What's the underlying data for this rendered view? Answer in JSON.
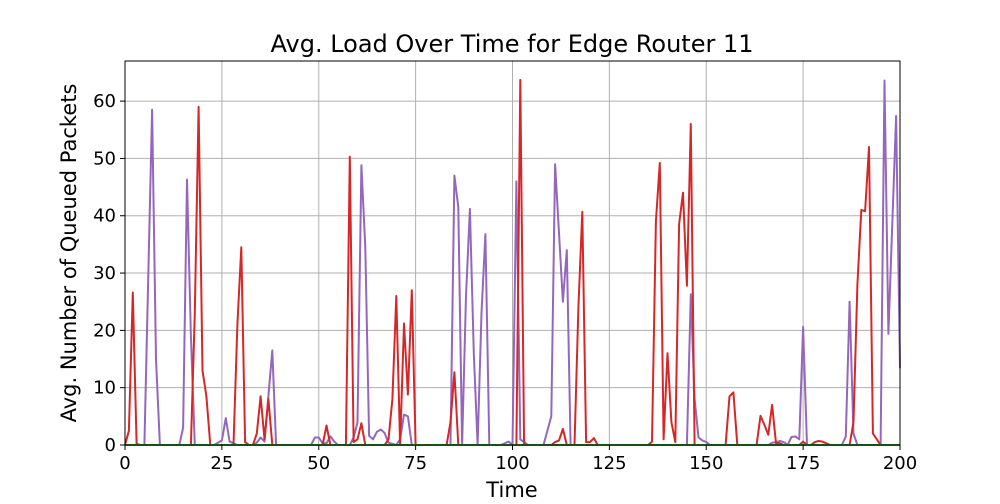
{
  "chart_data": {
    "type": "line",
    "title": "Avg. Load Over Time for Edge Router 11",
    "xlabel": "Time",
    "ylabel": "Avg. Number of Queued Packets",
    "xlim": [
      0,
      200
    ],
    "ylim": [
      0,
      67
    ],
    "xticks": [
      0,
      25,
      50,
      75,
      100,
      125,
      150,
      175,
      200
    ],
    "yticks": [
      0,
      10,
      20,
      30,
      40,
      50,
      60
    ],
    "grid": true,
    "colors": {
      "purple": "#9467bd",
      "red": "#d62728",
      "green": "#2ca02c"
    },
    "series": [
      {
        "color": "#9467bd",
        "points": [
          [
            0,
            0
          ],
          [
            5,
            0
          ],
          [
            7,
            58.5
          ],
          [
            8,
            15
          ],
          [
            9,
            0
          ],
          [
            14,
            0
          ],
          [
            15,
            3
          ],
          [
            16,
            46.3
          ],
          [
            17,
            19
          ],
          [
            18,
            0
          ],
          [
            23,
            0
          ],
          [
            25,
            0.8
          ],
          [
            26,
            4.7
          ],
          [
            27,
            0.6
          ],
          [
            29,
            0
          ],
          [
            33,
            0
          ],
          [
            34,
            0.4
          ],
          [
            35,
            1.3
          ],
          [
            36,
            0.6
          ],
          [
            38,
            16.5
          ],
          [
            39,
            0
          ],
          [
            48,
            0
          ],
          [
            49,
            1.3
          ],
          [
            50,
            1.3
          ],
          [
            51,
            0.3
          ],
          [
            52,
            0.3
          ],
          [
            53,
            1.5
          ],
          [
            54,
            0.6
          ],
          [
            55,
            0
          ],
          [
            58,
            0
          ],
          [
            59,
            1.3
          ],
          [
            60,
            3.9
          ],
          [
            61,
            48.8
          ],
          [
            62,
            34.5
          ],
          [
            63,
            1.6
          ],
          [
            64,
            1
          ],
          [
            65,
            2.3
          ],
          [
            66,
            2.7
          ],
          [
            67,
            2.1
          ],
          [
            68,
            0.4
          ],
          [
            70,
            0
          ],
          [
            71,
            1
          ],
          [
            72,
            5.3
          ],
          [
            73,
            5
          ],
          [
            74,
            0
          ],
          [
            84,
            0
          ],
          [
            85,
            47
          ],
          [
            86,
            41.5
          ],
          [
            87,
            0
          ],
          [
            88,
            26
          ],
          [
            89,
            41.2
          ],
          [
            90,
            16
          ],
          [
            91,
            0
          ],
          [
            92,
            23
          ],
          [
            93,
            36.8
          ],
          [
            94,
            0
          ],
          [
            97,
            0
          ],
          [
            99,
            0.6
          ],
          [
            100,
            0
          ],
          [
            101,
            46
          ],
          [
            102,
            1
          ],
          [
            103,
            0.5
          ],
          [
            104,
            0
          ],
          [
            108,
            0
          ],
          [
            110,
            5
          ],
          [
            111,
            49
          ],
          [
            112,
            37
          ],
          [
            113,
            25
          ],
          [
            114,
            34
          ],
          [
            115,
            0
          ],
          [
            145,
            0
          ],
          [
            146,
            26.3
          ],
          [
            147,
            8
          ],
          [
            148,
            1.3
          ],
          [
            149,
            0.8
          ],
          [
            150,
            0.5
          ],
          [
            151,
            0
          ],
          [
            166,
            0
          ],
          [
            167,
            0.4
          ],
          [
            168,
            0.5
          ],
          [
            169,
            0.7
          ],
          [
            170,
            0.5
          ],
          [
            171,
            0
          ],
          [
            172,
            1.4
          ],
          [
            173,
            1.5
          ],
          [
            174,
            1
          ],
          [
            175,
            20.6
          ],
          [
            176,
            0
          ],
          [
            185,
            0
          ],
          [
            186,
            1.5
          ],
          [
            187,
            25
          ],
          [
            188,
            2
          ],
          [
            189,
            0
          ],
          [
            192,
            0
          ],
          [
            195,
            0
          ],
          [
            196,
            63.6
          ],
          [
            197,
            19.4
          ],
          [
            199,
            57.4
          ],
          [
            200,
            13.4
          ]
        ]
      },
      {
        "color": "#d62728",
        "points": [
          [
            0,
            0
          ],
          [
            1,
            2.5
          ],
          [
            2,
            26.6
          ],
          [
            3,
            0.2
          ],
          [
            4,
            0
          ],
          [
            17,
            0
          ],
          [
            18,
            23
          ],
          [
            19,
            59
          ],
          [
            20,
            13
          ],
          [
            21,
            8.5
          ],
          [
            22,
            0
          ],
          [
            28,
            0
          ],
          [
            29,
            21
          ],
          [
            30,
            34.5
          ],
          [
            31,
            0.5
          ],
          [
            32,
            0
          ],
          [
            33,
            0
          ],
          [
            34,
            2
          ],
          [
            35,
            8.5
          ],
          [
            36,
            1
          ],
          [
            37,
            8
          ],
          [
            38,
            0
          ],
          [
            51,
            0
          ],
          [
            52,
            3.4
          ],
          [
            53,
            0
          ],
          [
            57,
            0
          ],
          [
            58,
            50.3
          ],
          [
            59,
            0.5
          ],
          [
            60,
            1
          ],
          [
            61,
            3.8
          ],
          [
            62,
            0
          ],
          [
            66,
            0
          ],
          [
            67,
            0
          ],
          [
            68,
            1
          ],
          [
            69,
            8
          ],
          [
            70,
            26
          ],
          [
            71,
            0
          ],
          [
            72,
            21.2
          ],
          [
            73,
            8.8
          ],
          [
            74,
            27
          ],
          [
            75,
            0
          ],
          [
            83,
            0
          ],
          [
            84,
            4
          ],
          [
            85,
            12.7
          ],
          [
            86,
            0
          ],
          [
            101,
            0
          ],
          [
            102,
            63.7
          ],
          [
            103,
            0
          ],
          [
            110,
            0
          ],
          [
            111,
            0.5
          ],
          [
            112,
            0.8
          ],
          [
            113,
            2.8
          ],
          [
            114,
            0
          ],
          [
            116,
            0
          ],
          [
            117,
            24
          ],
          [
            118,
            40.7
          ],
          [
            119,
            0.5
          ],
          [
            120,
            0.5
          ],
          [
            121,
            1.2
          ],
          [
            122,
            0
          ],
          [
            135,
            0
          ],
          [
            136,
            0.6
          ],
          [
            137,
            39
          ],
          [
            138,
            49.2
          ],
          [
            139,
            1
          ],
          [
            140,
            16
          ],
          [
            141,
            4
          ],
          [
            142,
            0.5
          ],
          [
            143,
            38.5
          ],
          [
            144,
            44
          ],
          [
            145,
            27.8
          ],
          [
            146,
            56
          ],
          [
            147,
            0
          ],
          [
            155,
            0
          ],
          [
            156,
            8.5
          ],
          [
            157,
            9.2
          ],
          [
            158,
            0
          ],
          [
            163,
            0
          ],
          [
            164,
            5.1
          ],
          [
            165,
            3.5
          ],
          [
            166,
            1.8
          ],
          [
            167,
            7
          ],
          [
            168,
            0.3
          ],
          [
            169,
            0.3
          ],
          [
            170,
            0
          ],
          [
            171,
            0
          ],
          [
            174,
            0
          ],
          [
            175,
            0.6
          ],
          [
            176,
            0
          ],
          [
            177,
            0
          ],
          [
            178,
            0.5
          ],
          [
            179,
            0.7
          ],
          [
            180,
            0.6
          ],
          [
            181,
            0.3
          ],
          [
            182,
            0
          ],
          [
            187,
            0
          ],
          [
            188,
            4
          ],
          [
            189,
            28
          ],
          [
            190,
            41
          ],
          [
            191,
            40.8
          ],
          [
            192,
            52
          ],
          [
            193,
            2
          ],
          [
            194,
            1
          ],
          [
            195,
            0
          ],
          [
            200,
            0
          ]
        ]
      },
      {
        "color": "#2ca02c",
        "points": [
          [
            0,
            0
          ],
          [
            50,
            0
          ],
          [
            100,
            0
          ],
          [
            150,
            0
          ],
          [
            200,
            0
          ]
        ]
      }
    ]
  }
}
